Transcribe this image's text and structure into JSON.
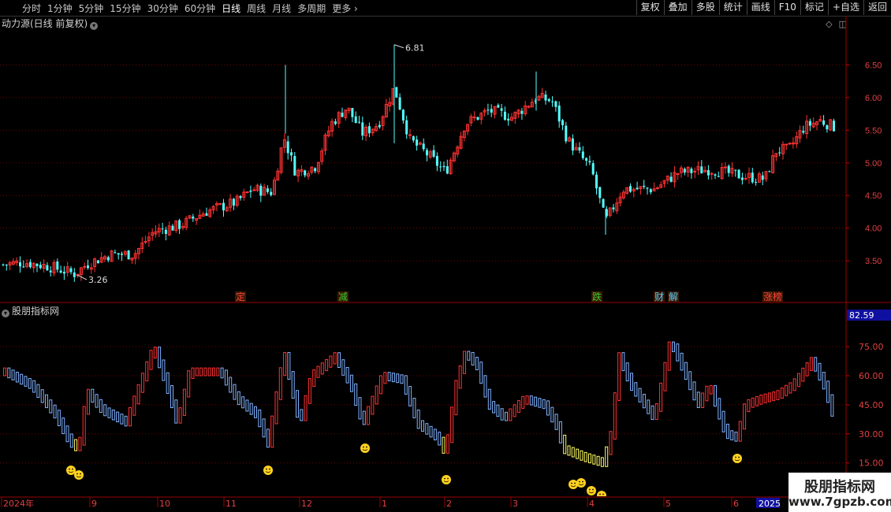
{
  "toolbar": {
    "period_tabs": [
      "分时",
      "1分钟",
      "5分钟",
      "15分钟",
      "30分钟",
      "60分钟",
      "日线",
      "周线",
      "月线",
      "多周期",
      "更多"
    ],
    "active_period": "日线",
    "right_buttons": [
      "复权",
      "叠加",
      "多股",
      "统计",
      "画线",
      "F10",
      "标记",
      "+自选",
      "返回"
    ]
  },
  "main_panel": {
    "title": "动力源(日线 前复权)",
    "price_axis": [
      "6.50",
      "6.00",
      "5.50",
      "5.00",
      "4.50",
      "4.00",
      "3.50"
    ],
    "high_label": "6.81",
    "low_label": "3.26",
    "event_tags": [
      {
        "text": "定",
        "color": "#ff4040"
      },
      {
        "text": "减",
        "color": "#33cc33"
      },
      {
        "text": "跌",
        "color": "#33cc33"
      },
      {
        "text": "财",
        "color": "#55ccff"
      },
      {
        "text": "解",
        "color": "#55ccff"
      },
      {
        "text": "涨榜",
        "color": "#ff4040"
      }
    ]
  },
  "indicator_panel": {
    "title": "股朋指标网",
    "current_value": "82.59",
    "axis": [
      "75.00",
      "60.00",
      "45.00",
      "30.00",
      "15.00"
    ]
  },
  "date_axis": [
    "2024年",
    "9",
    "10",
    "11",
    "12",
    "1",
    "2",
    "3",
    "4",
    "5",
    "6",
    "2025"
  ],
  "watermark": {
    "name": "股朋指标网",
    "url": "www.7gpzb.com"
  },
  "colors": {
    "up": "#ff3232",
    "down": "#54ffff",
    "ind_down": "#7fb2ff",
    "ind_yellow": "#ffff66",
    "grid": "#7a0000"
  }
}
